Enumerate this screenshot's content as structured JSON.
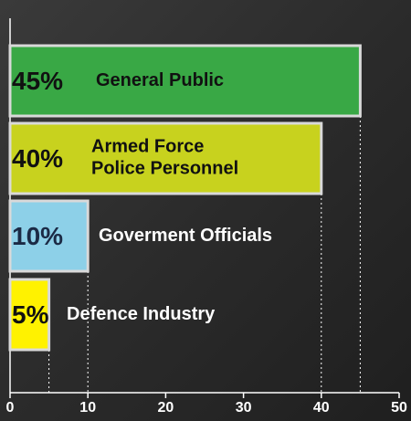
{
  "chart_data": {
    "type": "bar",
    "orientation": "horizontal",
    "categories": [
      "General Public",
      "Armed Force\nPolice Personnel",
      "Goverment Officials",
      "Defence Industry"
    ],
    "values": [
      45,
      40,
      10,
      5
    ],
    "value_labels": [
      "45%",
      "40%",
      "10%",
      "5%"
    ],
    "colors": [
      "#39a845",
      "#c8d21e",
      "#8dd0e8",
      "#fff200"
    ],
    "xlim": [
      0,
      50
    ],
    "xticks": [
      0,
      10,
      20,
      30,
      40,
      50
    ]
  }
}
